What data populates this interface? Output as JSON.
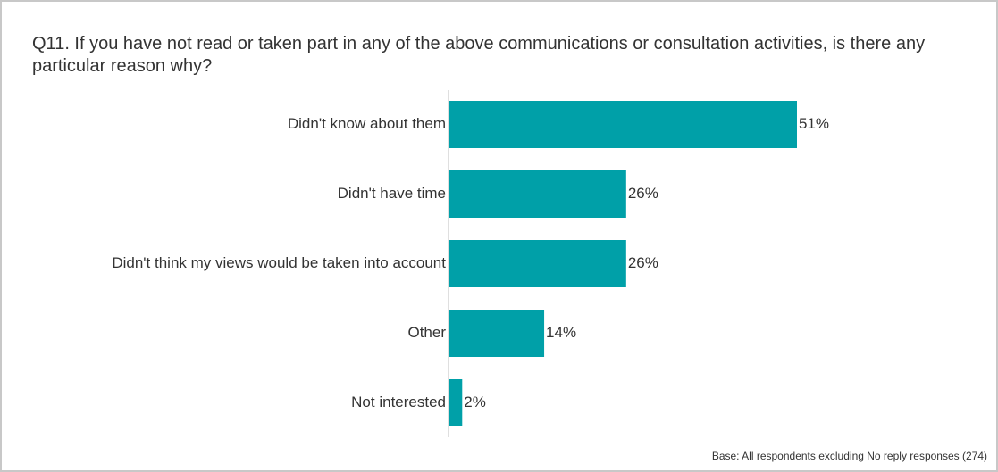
{
  "chart_data": {
    "type": "bar",
    "orientation": "horizontal",
    "title": "Q11. If you have not read or taken part in any of the above communications or consultation activities, is there any particular reason why?",
    "categories": [
      "Didn't know about them",
      "Didn't have time",
      "Didn't think my views would be taken into account",
      "Other",
      "Not interested"
    ],
    "values": [
      51,
      26,
      26,
      14,
      2
    ],
    "value_labels": [
      "51%",
      "26%",
      "26%",
      "14%",
      "2%"
    ],
    "unit": "%",
    "xlim": [
      0,
      100
    ],
    "grid": false,
    "legend": "none",
    "bar_color": "#00a0a8",
    "axis_color": "#bfbfbf",
    "note": "Base: All respondents excluding No reply responses (274)"
  }
}
